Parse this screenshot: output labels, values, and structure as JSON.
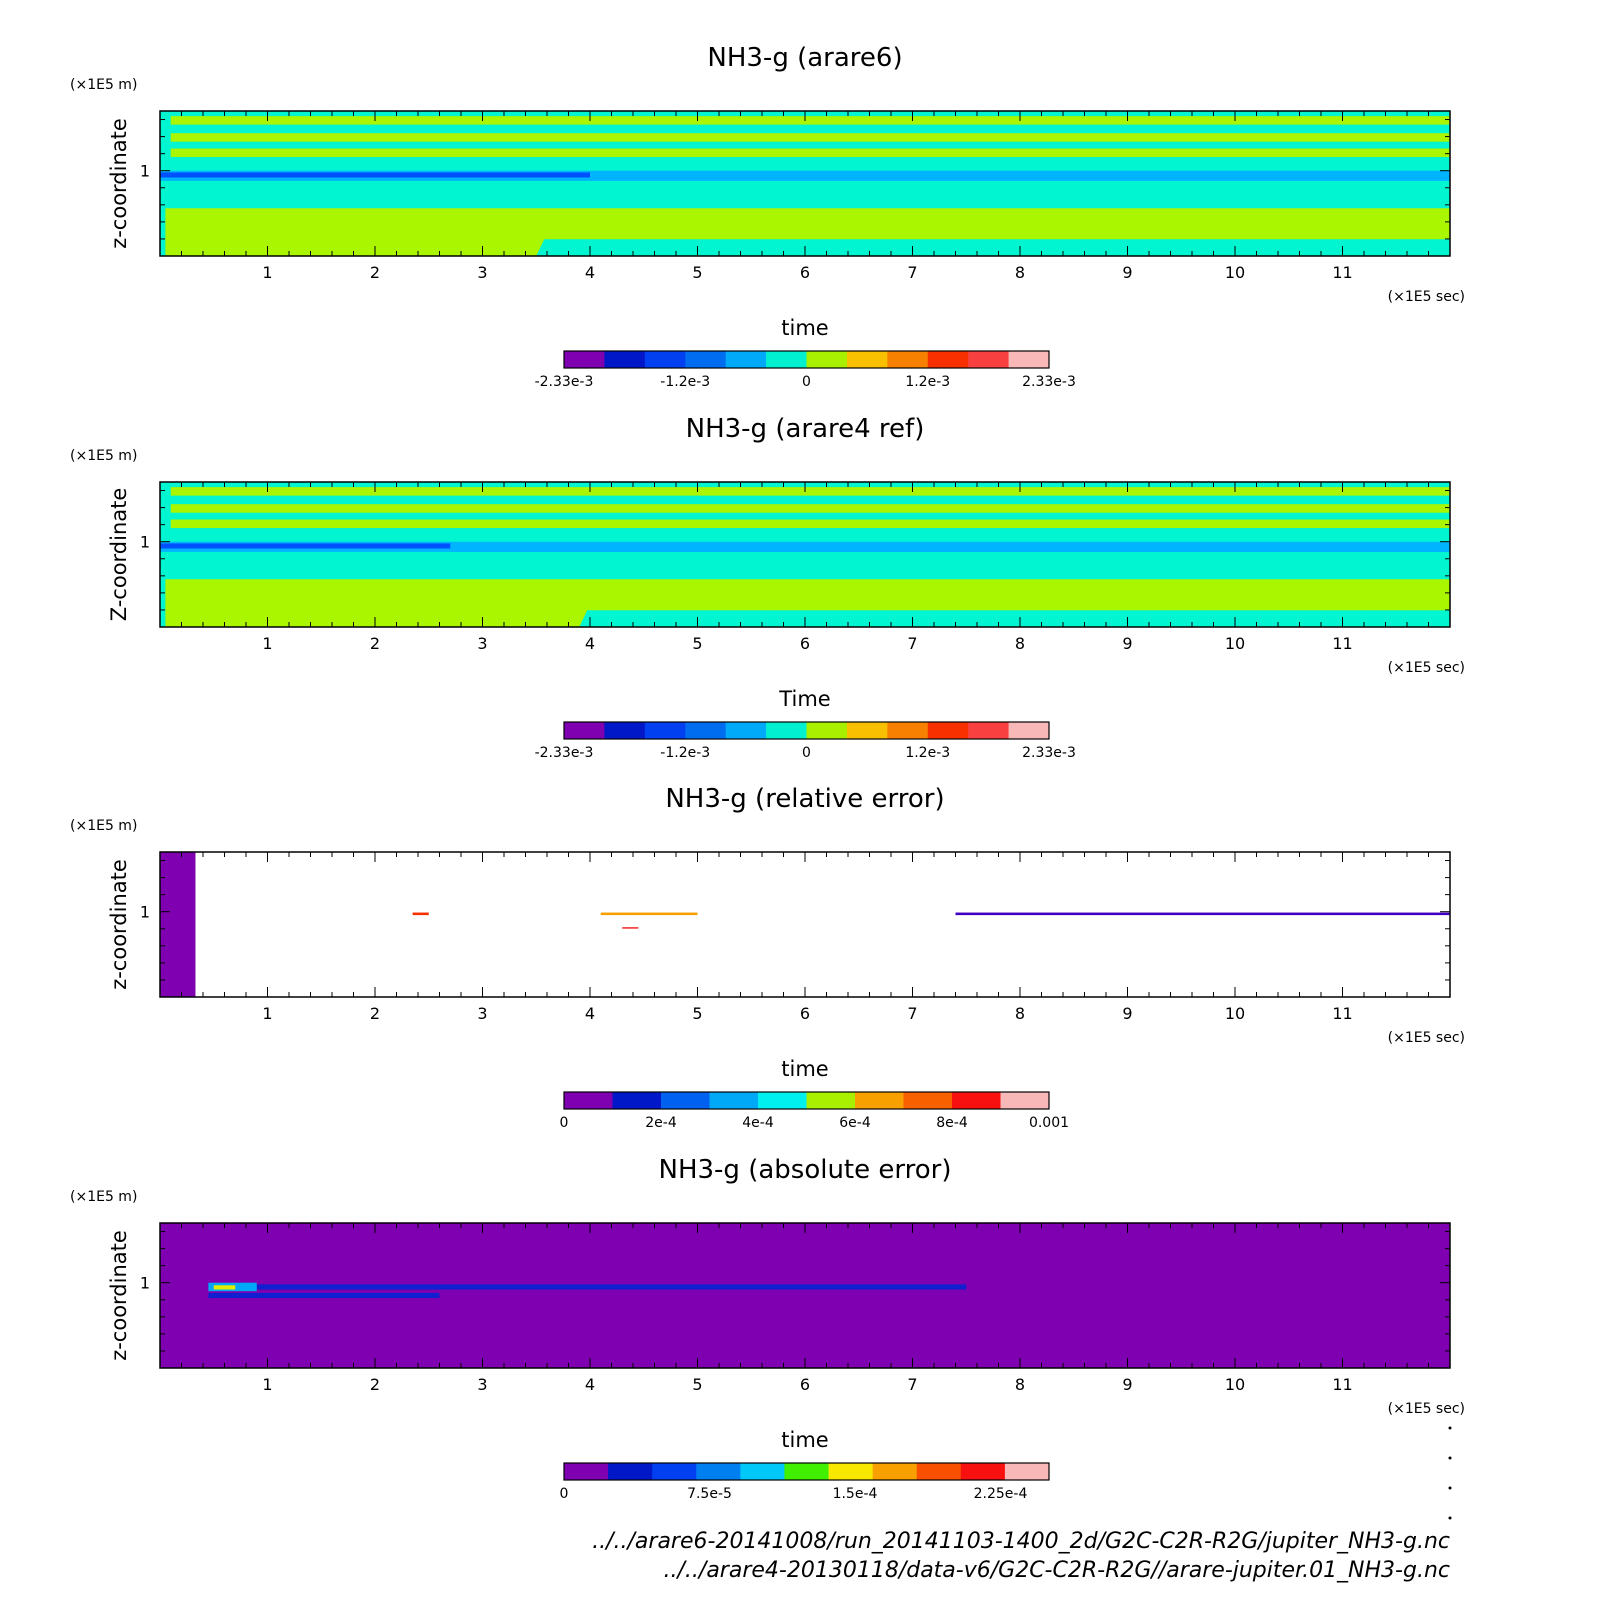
{
  "figure": {
    "footer_lines": [
      "../../arare6-20141008/run_20141103-1400_2d/G2C-C2R-R2G/jupiter_NH3-g.nc",
      "../../arare4-20130118/data-v6/G2C-C2R-R2G//arare-jupiter.01_NH3-g.nc"
    ]
  },
  "chart_data": [
    {
      "type": "heatmap",
      "title": "NH3-g (arare6)",
      "xlabel": "time",
      "ylabel": "z-coordinate",
      "x_unit": "(×1E5 sec)",
      "y_unit": "(×1E5 m)",
      "xlim": [
        0,
        12
      ],
      "ylim": [
        0.5,
        1.35
      ],
      "x_ticks": [
        1,
        2,
        3,
        4,
        5,
        6,
        7,
        8,
        9,
        10,
        11
      ],
      "y_ticks": [
        1
      ],
      "background_color": "#00f5d0",
      "bands": [
        {
          "x": [
            0.05,
            12
          ],
          "y": [
            0.5,
            0.78
          ],
          "color": "#aaf500",
          "x_end_low": 3.5
        },
        {
          "x": [
            0,
            12
          ],
          "y": [
            0.94,
            1.0
          ],
          "color": "#00b4ff"
        },
        {
          "x": [
            0,
            4.0
          ],
          "y": [
            0.96,
            0.99
          ],
          "color": "#0050ff"
        },
        {
          "x": [
            0.1,
            12
          ],
          "y": [
            1.08,
            1.13
          ],
          "color": "#aaf500"
        },
        {
          "x": [
            0.1,
            12
          ],
          "y": [
            1.17,
            1.22
          ],
          "color": "#aaf500"
        },
        {
          "x": [
            0.1,
            12
          ],
          "y": [
            1.27,
            1.32
          ],
          "color": "#aaf500"
        }
      ],
      "colorbar": {
        "colors": [
          "#7f00b0",
          "#0018c8",
          "#0040f0",
          "#006cf0",
          "#00aaf8",
          "#00f0d0",
          "#a8f000",
          "#f8c000",
          "#f88000",
          "#f83000",
          "#f84040",
          "#f8b8b8"
        ],
        "tick_labels": [
          "-2.33e-3",
          "-1.2e-3",
          "0",
          "1.2e-3",
          "2.33e-3"
        ],
        "tick_positions": [
          0,
          0.25,
          0.5,
          0.75,
          1.0
        ]
      }
    },
    {
      "type": "heatmap",
      "title": "NH3-g (arare4 ref)",
      "xlabel": "Time",
      "ylabel": "Z-coordinate",
      "x_unit": "(×1E5 sec)",
      "y_unit": "(×1E5 m)",
      "xlim": [
        0,
        12
      ],
      "ylim": [
        0.5,
        1.35
      ],
      "x_ticks": [
        1,
        2,
        3,
        4,
        5,
        6,
        7,
        8,
        9,
        10,
        11
      ],
      "y_ticks": [
        1
      ],
      "background_color": "#00f5d0",
      "bands": [
        {
          "x": [
            0.05,
            12
          ],
          "y": [
            0.5,
            0.78
          ],
          "color": "#aaf500",
          "x_end_low": 3.9
        },
        {
          "x": [
            0,
            12
          ],
          "y": [
            0.94,
            1.0
          ],
          "color": "#00b4ff"
        },
        {
          "x": [
            0,
            2.7
          ],
          "y": [
            0.96,
            0.99
          ],
          "color": "#0050ff"
        },
        {
          "x": [
            0.1,
            12
          ],
          "y": [
            1.08,
            1.13
          ],
          "color": "#aaf500"
        },
        {
          "x": [
            0.1,
            12
          ],
          "y": [
            1.17,
            1.22
          ],
          "color": "#aaf500"
        },
        {
          "x": [
            0.1,
            12
          ],
          "y": [
            1.27,
            1.32
          ],
          "color": "#aaf500"
        }
      ],
      "colorbar": {
        "colors": [
          "#7f00b0",
          "#0018c8",
          "#0040f0",
          "#006cf0",
          "#00aaf8",
          "#00f0d0",
          "#a8f000",
          "#f8c000",
          "#f88000",
          "#f83000",
          "#f84040",
          "#f8b8b8"
        ],
        "tick_labels": [
          "-2.33e-3",
          "-1.2e-3",
          "0",
          "1.2e-3",
          "2.33e-3"
        ],
        "tick_positions": [
          0,
          0.25,
          0.5,
          0.75,
          1.0
        ]
      }
    },
    {
      "type": "heatmap",
      "title": "NH3-g (relative error)",
      "xlabel": "time",
      "ylabel": "z-coordinate",
      "x_unit": "(×1E5 sec)",
      "y_unit": "(×1E5 m)",
      "xlim": [
        0,
        12
      ],
      "ylim": [
        0.5,
        1.35
      ],
      "x_ticks": [
        1,
        2,
        3,
        4,
        5,
        6,
        7,
        8,
        9,
        10,
        11
      ],
      "y_ticks": [
        1
      ],
      "background_color": "#ffffff",
      "bands": [
        {
          "x": [
            0,
            0.33
          ],
          "y": [
            0.5,
            1.35
          ],
          "color": "#7f00b0"
        },
        {
          "x": [
            7.4,
            12
          ],
          "y": [
            0.98,
            0.995
          ],
          "color": "#4000c0"
        },
        {
          "x": [
            4.1,
            5.0
          ],
          "y": [
            0.98,
            0.995
          ],
          "color": "#f8a000"
        },
        {
          "x": [
            2.35,
            2.5
          ],
          "y": [
            0.98,
            0.995
          ],
          "color": "#f83000"
        },
        {
          "x": [
            4.3,
            4.45
          ],
          "y": [
            0.9,
            0.91
          ],
          "color": "#f84040"
        }
      ],
      "colorbar": {
        "colors": [
          "#7f00b0",
          "#0018c8",
          "#0060f0",
          "#00a8f8",
          "#00f0f0",
          "#a8f000",
          "#f8a000",
          "#f86000",
          "#f81010",
          "#f8b8b8"
        ],
        "tick_labels": [
          "0",
          "2e-4",
          "4e-4",
          "6e-4",
          "8e-4",
          "0.001"
        ],
        "tick_positions": [
          0,
          0.2,
          0.4,
          0.6,
          0.8,
          1.0
        ]
      }
    },
    {
      "type": "heatmap",
      "title": "NH3-g (absolute error)",
      "xlabel": "time",
      "ylabel": "z-coordinate",
      "x_unit": "(×1E5 sec)",
      "y_unit": "(×1E5 m)",
      "xlim": [
        0,
        12
      ],
      "ylim": [
        0.5,
        1.35
      ],
      "x_ticks": [
        1,
        2,
        3,
        4,
        5,
        6,
        7,
        8,
        9,
        10,
        11
      ],
      "y_ticks": [
        1
      ],
      "background_color": "#7f00b0",
      "bands": [
        {
          "x": [
            0.45,
            7.5
          ],
          "y": [
            0.96,
            0.99
          ],
          "color": "#1020d0"
        },
        {
          "x": [
            0.45,
            2.6
          ],
          "y": [
            0.91,
            0.94
          ],
          "color": "#1020d0"
        },
        {
          "x": [
            0.45,
            0.9
          ],
          "y": [
            0.95,
            1.0
          ],
          "color": "#00a8f8"
        },
        {
          "x": [
            0.5,
            0.7
          ],
          "y": [
            0.96,
            0.985
          ],
          "color": "#e0f000"
        }
      ],
      "colorbar": {
        "colors": [
          "#7f00b0",
          "#0018c8",
          "#0040f0",
          "#0080f0",
          "#00c8f8",
          "#40f000",
          "#f8e800",
          "#f8a000",
          "#f85000",
          "#f81010",
          "#f8b8b8"
        ],
        "tick_labels": [
          "0",
          "7.5e-5",
          "1.5e-4",
          "2.25e-4"
        ],
        "tick_positions": [
          0,
          0.3,
          0.6,
          0.9
        ]
      }
    }
  ]
}
